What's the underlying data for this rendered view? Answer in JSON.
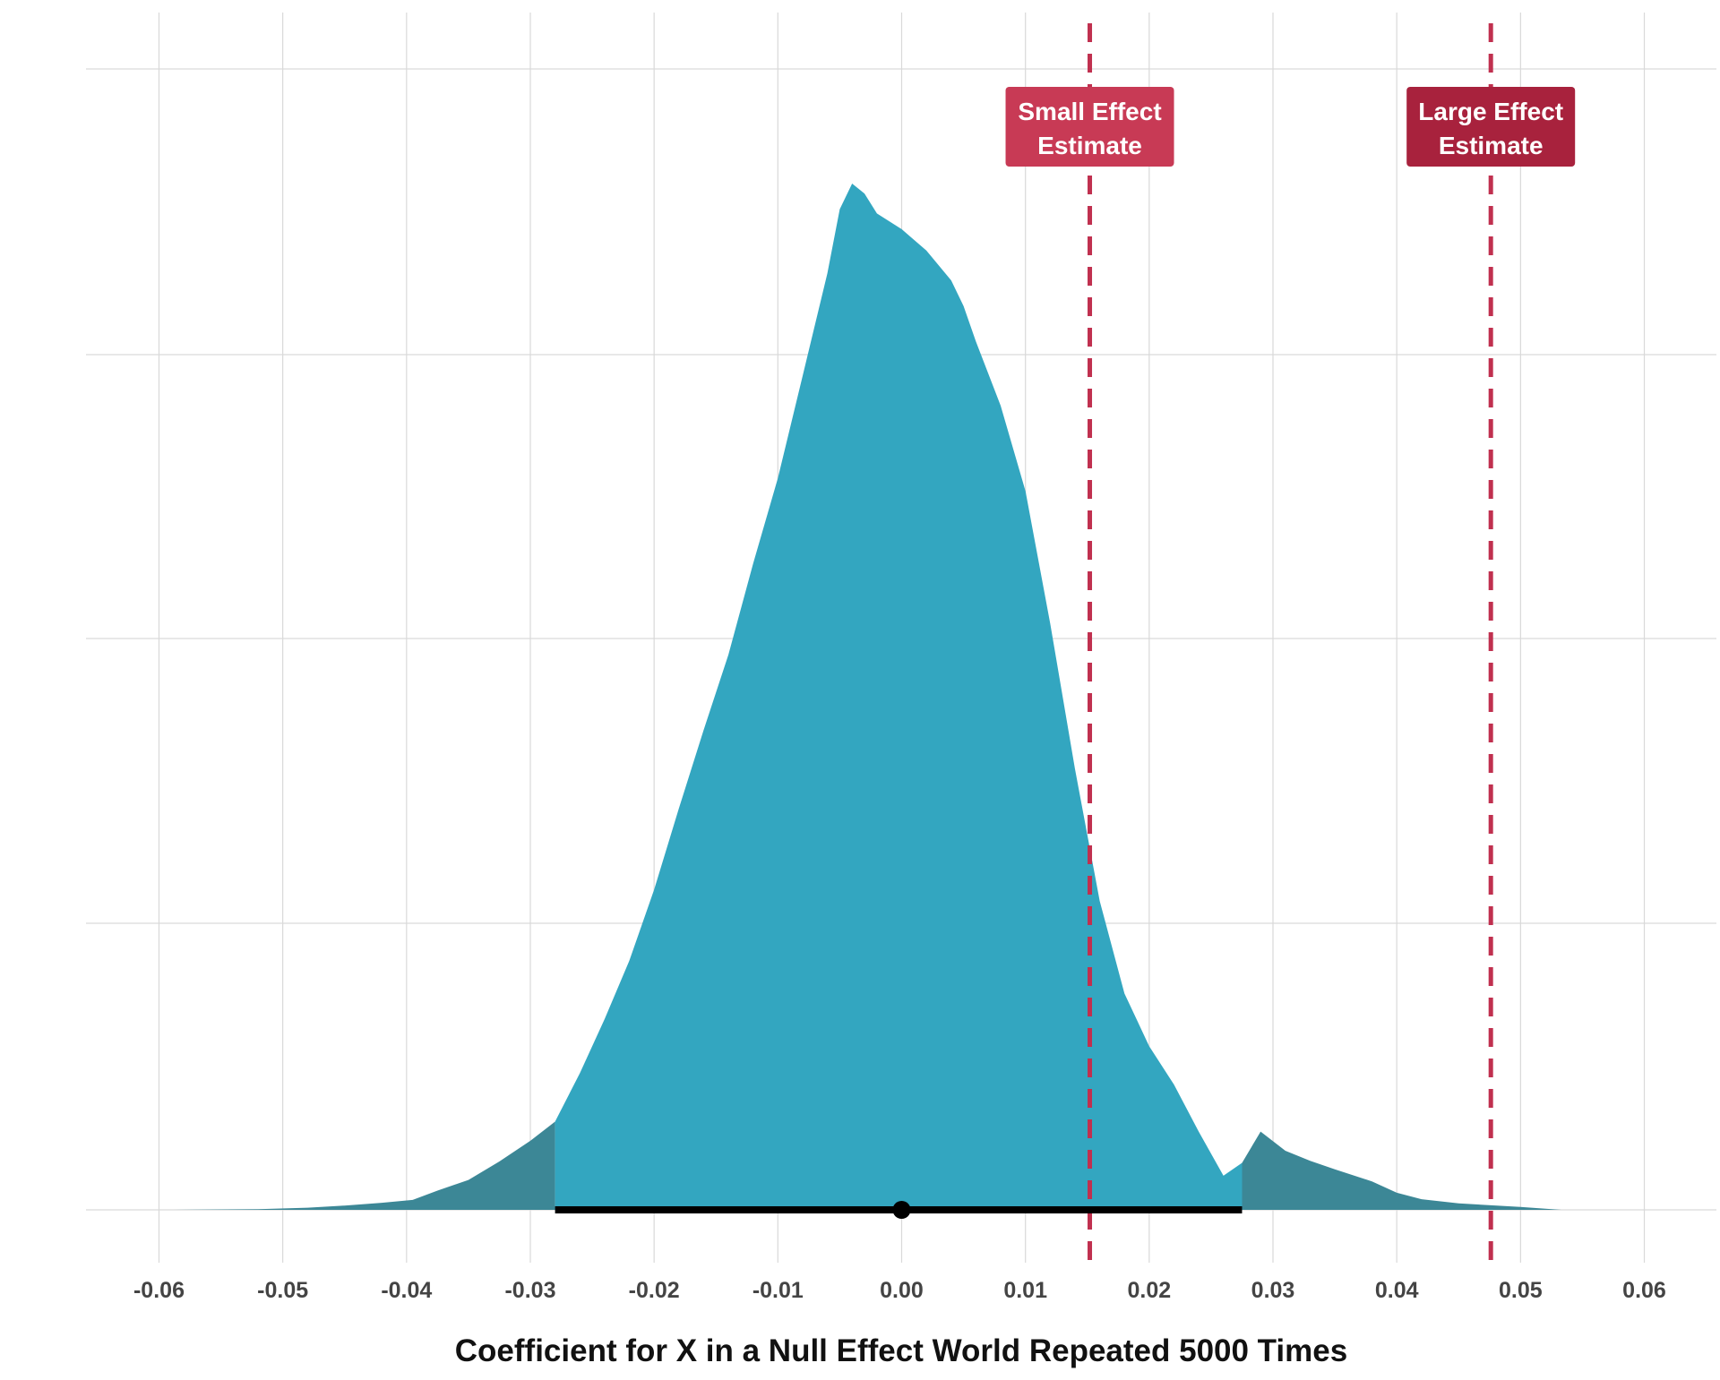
{
  "chart_data": {
    "type": "area",
    "xlabel": "Coefficient for X in a Null Effect World Repeated 5000 Times",
    "ylabel": "",
    "xlim": [
      -0.066,
      0.066
    ],
    "x_ticks": [
      -0.06,
      -0.05,
      -0.04,
      -0.03,
      -0.02,
      -0.01,
      0.0,
      0.01,
      0.02,
      0.03,
      0.04,
      0.05,
      0.06
    ],
    "x_tick_labels": [
      "-0.06",
      "-0.05",
      "-0.04",
      "-0.03",
      "-0.02",
      "-0.01",
      "0.00",
      "0.01",
      "0.02",
      "0.03",
      "0.04",
      "0.05",
      "0.06"
    ],
    "y_tick_labels": [],
    "grid": true,
    "density_curve": {
      "x": [
        -0.0588,
        -0.052,
        -0.048,
        -0.045,
        -0.042,
        -0.0395,
        -0.0375,
        -0.035,
        -0.0325,
        -0.03,
        -0.028,
        -0.026,
        -0.024,
        -0.022,
        -0.02,
        -0.018,
        -0.016,
        -0.014,
        -0.012,
        -0.01,
        -0.008,
        -0.006,
        -0.005,
        -0.004,
        -0.003,
        -0.002,
        0.0,
        0.002,
        0.004,
        0.005,
        0.006,
        0.008,
        0.01,
        0.012,
        0.014,
        0.016,
        0.018,
        0.02,
        0.022,
        0.024,
        0.026,
        0.0275,
        0.029,
        0.031,
        0.033,
        0.035,
        0.038,
        0.04,
        0.042,
        0.045,
        0.05,
        0.0533
      ],
      "density": [
        0.0,
        0.005,
        0.015,
        0.03,
        0.05,
        0.07,
        0.135,
        0.21,
        0.34,
        0.485,
        0.62,
        0.96,
        1.34,
        1.75,
        2.25,
        2.82,
        3.37,
        3.9,
        4.54,
        5.14,
        5.86,
        6.58,
        7.03,
        7.21,
        7.14,
        7.0,
        6.89,
        6.74,
        6.53,
        6.35,
        6.1,
        5.65,
        5.05,
        4.12,
        3.1,
        2.17,
        1.52,
        1.15,
        0.88,
        0.55,
        0.24,
        0.33,
        0.55,
        0.415,
        0.345,
        0.285,
        0.2,
        0.12,
        0.075,
        0.045,
        0.02,
        0.0
      ]
    },
    "interval": {
      "low": -0.028,
      "high": 0.0275,
      "point": 0.0
    },
    "reference_lines": [
      {
        "x": 0.0152,
        "label_line1": "Small Effect",
        "label_line2": "Estimate",
        "color": "#c83a55"
      },
      {
        "x": 0.0476,
        "label_line1": "Large Effect",
        "label_line2": "Estimate",
        "color": "#a8223d"
      }
    ],
    "colors": {
      "center_fill": "#33a6c0",
      "tail_fill": "#3c8796",
      "interval": "#000000",
      "grid": "#d9d9d9",
      "dashed_line": "#c0304f"
    }
  }
}
